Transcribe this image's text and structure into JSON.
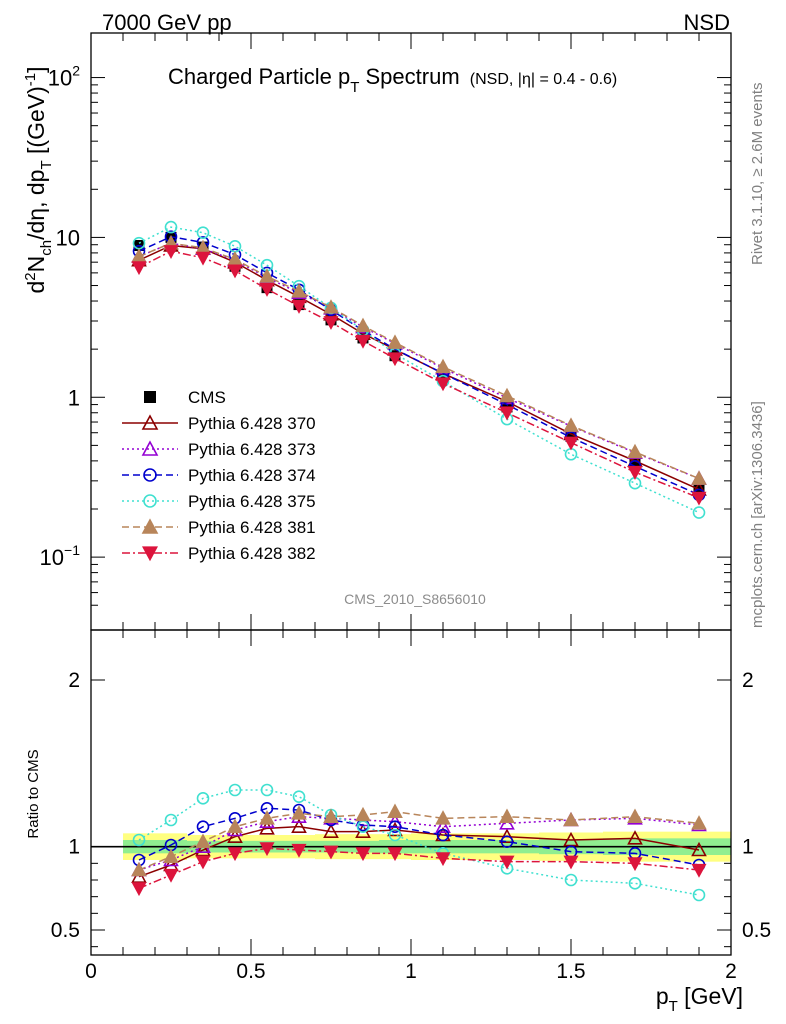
{
  "header": {
    "energy": "7000 GeV pp",
    "process": "NSD",
    "rivet": "Rivet 3.1.10, ≥ 2.6M events",
    "mcplots": "mcplots.cern.ch [arXiv:1306.3436]",
    "watermark": "CMS_2010_S8656010"
  },
  "chart_data": [
    {
      "panel": "main",
      "type": "scatter",
      "title_main": "Charged Particle p",
      "title_sub": "T",
      "title_tail": " Spectrum",
      "title_qual": "(NSD, |η| = 0.4 - 0.6)",
      "ylabel": "d²N_ch/dη, dp_T [(GeV)⁻¹]",
      "yscale": "log",
      "ylim": [
        0.035,
        190
      ],
      "xlim": [
        0,
        2
      ],
      "yticks": [
        "10⁻¹",
        "1",
        "10",
        "10²"
      ],
      "x": [
        0.15,
        0.25,
        0.35,
        0.45,
        0.55,
        0.65,
        0.75,
        0.85,
        0.95,
        1.1,
        1.3,
        1.5,
        1.7,
        1.9
      ],
      "series": [
        {
          "name": "CMS",
          "color": "#000000",
          "marker": "square-filled",
          "line": "none",
          "values": [
            8.9,
            10.0,
            8.7,
            6.6,
            4.85,
            3.8,
            3.05,
            2.35,
            1.82,
            1.32,
            0.87,
            0.57,
            0.38,
            0.27
          ]
        },
        {
          "name": "Pythia 6.428 370",
          "color": "#8b0000",
          "marker": "triangle-open",
          "line": "solid",
          "values": [
            7.2,
            8.9,
            8.5,
            7.0,
            5.4,
            4.25,
            3.3,
            2.5,
            1.99,
            1.41,
            0.94,
            0.59,
            0.4,
            0.265
          ]
        },
        {
          "name": "Pythia 6.428 373",
          "color": "#9400d3",
          "marker": "triangle-open",
          "line": "dotted",
          "values": [
            7.6,
            9.2,
            8.5,
            7.2,
            5.6,
            4.5,
            3.6,
            2.75,
            2.17,
            1.52,
            0.99,
            0.66,
            0.45,
            0.31
          ]
        },
        {
          "name": "Pythia 6.428 374",
          "color": "#0000cd",
          "marker": "circle-open",
          "line": "dashed",
          "values": [
            8.2,
            10.1,
            9.3,
            7.8,
            6.0,
            4.7,
            3.52,
            2.62,
            2.0,
            1.41,
            0.9,
            0.56,
            0.37,
            0.245
          ]
        },
        {
          "name": "Pythia 6.428 375",
          "color": "#40e0d0",
          "marker": "circle-open",
          "line": "dotted",
          "values": [
            9.2,
            11.6,
            10.7,
            8.8,
            6.7,
            4.95,
            3.62,
            2.63,
            1.87,
            1.26,
            0.73,
            0.44,
            0.29,
            0.19
          ]
        },
        {
          "name": "Pythia 6.428 381",
          "color": "#b8855a",
          "marker": "triangle-filled",
          "line": "dashed",
          "values": [
            7.6,
            9.2,
            8.6,
            7.3,
            5.7,
            4.6,
            3.65,
            2.8,
            2.2,
            1.55,
            1.02,
            0.665,
            0.455,
            0.31
          ]
        },
        {
          "name": "Pythia 6.428 382",
          "color": "#dc143c",
          "marker": "triangle-down-filled",
          "line": "dashdot",
          "values": [
            6.5,
            8.2,
            7.45,
            6.2,
            4.75,
            3.72,
            2.95,
            2.25,
            1.75,
            1.22,
            0.8,
            0.52,
            0.34,
            0.235
          ]
        }
      ]
    },
    {
      "panel": "ratio",
      "type": "scatter",
      "ylabel": "Ratio to CMS",
      "ylim": [
        0.35,
        2.3
      ],
      "yticks": [
        0.5,
        1,
        2
      ],
      "xlabel": "p_T [GeV]",
      "xticks": [
        "0",
        "0.5",
        "1",
        "1.5",
        "2"
      ],
      "x": [
        0.15,
        0.25,
        0.35,
        0.45,
        0.55,
        0.65,
        0.75,
        0.85,
        0.95,
        1.1,
        1.3,
        1.5,
        1.7,
        1.9
      ],
      "bands": {
        "outer_color": "#ffff80",
        "inner_color": "#90ee90",
        "bins": [
          [
            0.1,
            0.2
          ],
          [
            0.2,
            0.3
          ],
          [
            0.3,
            0.4
          ],
          [
            0.4,
            0.5
          ],
          [
            0.5,
            0.6
          ],
          [
            0.6,
            0.7
          ],
          [
            0.7,
            0.8
          ],
          [
            0.8,
            0.9
          ],
          [
            0.9,
            1.0
          ],
          [
            1.0,
            1.2
          ],
          [
            1.2,
            1.4
          ],
          [
            1.4,
            1.6
          ],
          [
            1.6,
            1.8
          ],
          [
            1.8,
            2.0
          ]
        ],
        "outer": [
          0.08,
          0.08,
          0.07,
          0.07,
          0.07,
          0.07,
          0.075,
          0.075,
          0.075,
          0.08,
          0.08,
          0.085,
          0.09,
          0.09
        ],
        "inner": [
          0.04,
          0.04,
          0.035,
          0.035,
          0.035,
          0.035,
          0.035,
          0.035,
          0.04,
          0.04,
          0.04,
          0.045,
          0.05,
          0.05
        ]
      },
      "series": [
        {
          "name": "Pythia 6.428 370",
          "values": [
            0.82,
            0.89,
            0.98,
            1.06,
            1.11,
            1.12,
            1.09,
            1.09,
            1.1,
            1.07,
            1.06,
            1.04,
            1.05,
            0.98
          ]
        },
        {
          "name": "Pythia 6.428 373",
          "values": [
            0.86,
            0.92,
            1.0,
            1.1,
            1.15,
            1.18,
            1.17,
            1.16,
            1.15,
            1.12,
            1.14,
            1.16,
            1.17,
            1.13
          ]
        },
        {
          "name": "Pythia 6.428 374",
          "values": [
            0.92,
            1.01,
            1.12,
            1.17,
            1.23,
            1.22,
            1.16,
            1.13,
            1.12,
            1.07,
            1.03,
            0.97,
            0.96,
            0.89
          ]
        },
        {
          "name": "Pythia 6.428 375",
          "values": [
            1.04,
            1.16,
            1.29,
            1.34,
            1.34,
            1.3,
            1.19,
            1.12,
            1.07,
            0.96,
            0.87,
            0.8,
            0.78,
            0.71
          ]
        },
        {
          "name": "Pythia 6.428 381",
          "values": [
            0.86,
            0.94,
            1.03,
            1.12,
            1.17,
            1.2,
            1.18,
            1.19,
            1.21,
            1.17,
            1.18,
            1.16,
            1.18,
            1.14
          ]
        },
        {
          "name": "Pythia 6.428 382",
          "values": [
            0.75,
            0.83,
            0.91,
            0.96,
            0.99,
            0.98,
            0.97,
            0.96,
            0.96,
            0.93,
            0.91,
            0.91,
            0.9,
            0.86
          ]
        }
      ]
    }
  ]
}
